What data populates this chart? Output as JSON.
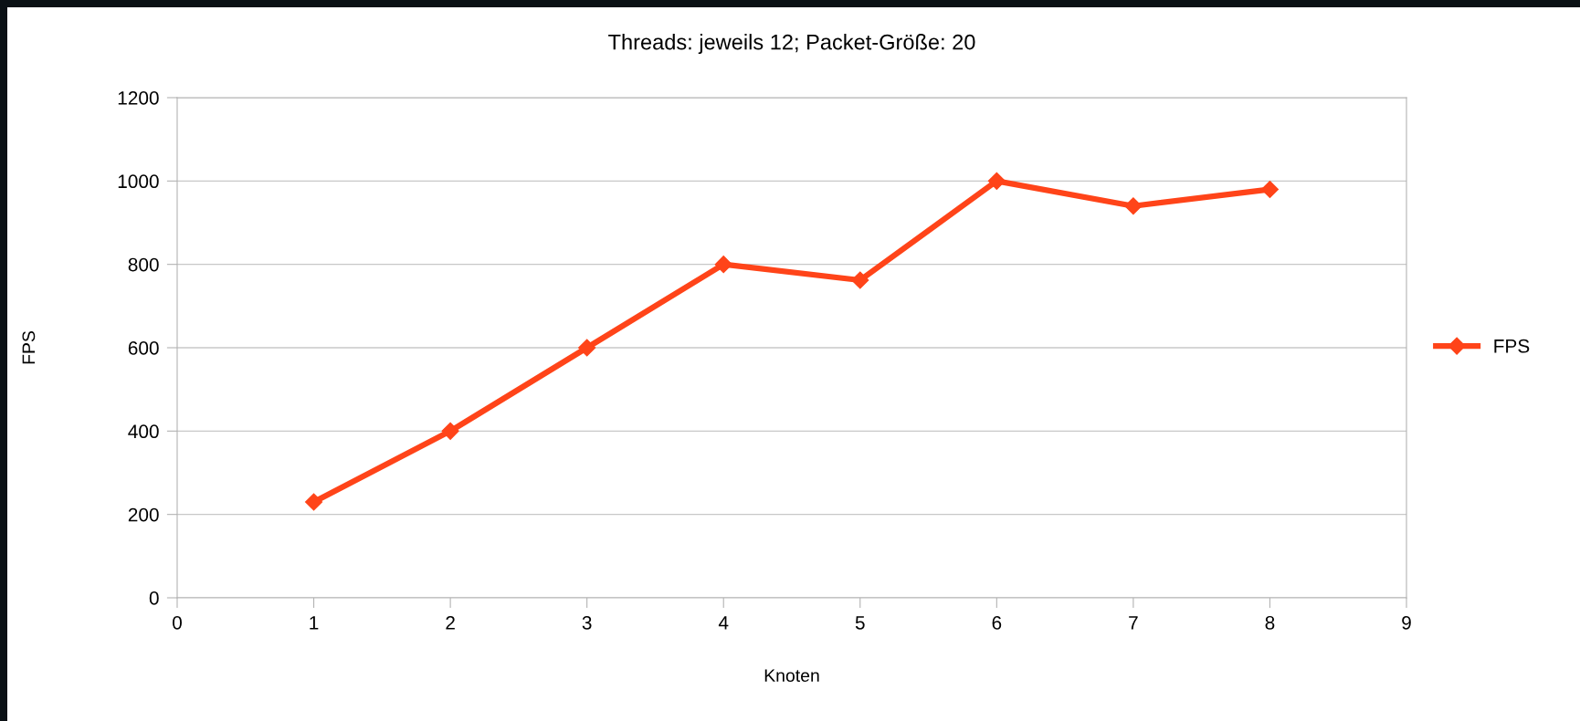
{
  "chart_data": {
    "type": "line",
    "title": "Threads: jeweils 12; Packet-Größe: 20",
    "xlabel": "Knoten",
    "ylabel": "FPS",
    "x": [
      1,
      2,
      3,
      4,
      5,
      6,
      7,
      8
    ],
    "series": [
      {
        "name": "FPS",
        "color": "#ff4419",
        "values": [
          230,
          400,
          600,
          800,
          762,
          1000,
          940,
          980
        ]
      }
    ],
    "xlim": [
      0,
      9
    ],
    "xticks": [
      0,
      1,
      2,
      3,
      4,
      5,
      6,
      7,
      8,
      9
    ],
    "ylim": [
      0,
      1200
    ],
    "yticks": [
      0,
      200,
      400,
      600,
      800,
      1000,
      1200
    ],
    "grid": "y",
    "legend": "right",
    "marker": "diamond",
    "line_style": "solid"
  }
}
